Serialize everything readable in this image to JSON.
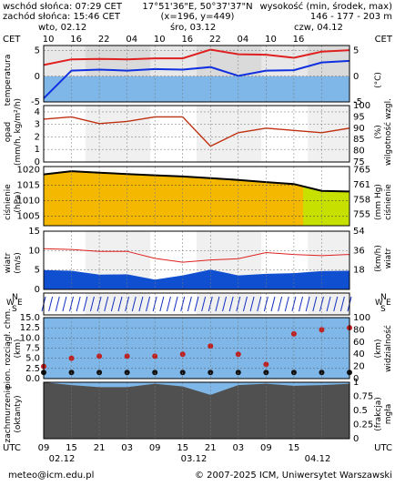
{
  "header": {
    "sunrise": "wschód słońca: 07:29 CET",
    "sunset": "zachód słońca: 15:46 CET",
    "coords": "17°51'36\"E, 50°37'37\"N",
    "grid": "(x=196, y=449)",
    "elevation_label": "wysokość (min, środek, max)",
    "elevation_values": "146 - 177 - 203 m"
  },
  "top_axis": {
    "tz_left": "CET",
    "tz_right": "CET",
    "days": [
      "wto, 02.12",
      "śro, 03.12",
      "czw, 04.12"
    ],
    "hours": [
      "10",
      "16",
      "22",
      "04",
      "10",
      "16",
      "22",
      "04",
      "10",
      "16"
    ]
  },
  "bottom_axis": {
    "tz_left": "UTC",
    "tz_right": "UTC",
    "hours": [
      "09",
      "15",
      "21",
      "03",
      "09",
      "15",
      "21",
      "03",
      "09",
      "15"
    ],
    "dates": [
      "02.12",
      "03.12",
      "04.12"
    ]
  },
  "labels": {
    "temperature_l": "temperatura",
    "temperature_r": "(°C)",
    "precip_l1": "opad",
    "precip_l2": "(mm/h, kg/m²/h)",
    "humidity_r1": "(%)",
    "humidity_r2": "wilgotność wzgl.",
    "pressure_l1": "ciśnienie",
    "pressure_l2": "(hPa)",
    "pressure_r1": "(mm Hg)",
    "pressure_r2": "ciśnienie",
    "wind_l": "wiatr",
    "wind_l2": "(m/s)",
    "wind_r1": "(km/h)",
    "wind_r2": "wiatr",
    "dir_n": "N",
    "dir_s": "S",
    "dir_w": "W",
    "dir_e": "E",
    "cloud_l1": "pion. rozciągł. chm.",
    "cloud_l2": "(km)",
    "visibility_r1": "(km)",
    "visibility_r2": "widzialność",
    "cover_l1": "zachmurzenie",
    "cover_l2": "(oktanty)",
    "fog_r1": "(frakcja)",
    "fog_r2": "mgła"
  },
  "footer": {
    "email": "meteo@icm.edu.pl",
    "copyright": "© 2007-2025 ICM, Uniwersytet Warszawski"
  },
  "colors": {
    "temp_line": "#e02020",
    "dew_line": "#1030e0",
    "humidity_line": "#c03010",
    "pressure_line": "#000000",
    "wind_fill": "#1050d0",
    "gust_line": "#e02020",
    "visibility_dots": "#c02020",
    "sky_blue": "#7fb8e8"
  },
  "chart_data": [
    {
      "type": "line",
      "title": "temperatura",
      "ylabel": "°C",
      "ylim": [
        -5,
        6
      ],
      "yticks": [
        -5,
        0,
        5
      ],
      "x": [
        0,
        6,
        12,
        18,
        24,
        30,
        36,
        42,
        48,
        54,
        60,
        66
      ],
      "series": [
        {
          "values": [
            2.2,
            3.3,
            3.4,
            3.3,
            3.5,
            3.5,
            5.2,
            4.3,
            4.2,
            3.6,
            4.8,
            5.1
          ]
        },
        {
          "values": [
            -4.3,
            1.1,
            1.3,
            1.1,
            1.4,
            1.3,
            1.8,
            0.1,
            1.1,
            1.2,
            2.7,
            3.0
          ]
        }
      ]
    },
    {
      "type": "line",
      "title": "wilgotność wzgl.",
      "ylabel": "%",
      "ylim": [
        75,
        100
      ],
      "yticks": [
        75,
        80,
        85,
        90,
        95,
        100
      ],
      "x": [
        0,
        6,
        12,
        18,
        24,
        30,
        36,
        42,
        48,
        54,
        60,
        66
      ],
      "series": [
        {
          "values": [
            94,
            95,
            92,
            93,
            95,
            95,
            82,
            88,
            90,
            89,
            88,
            90
          ]
        }
      ]
    },
    {
      "type": "line",
      "title": "ciśnienie",
      "ylabel": "hPa",
      "ylim": [
        1002,
        1021
      ],
      "yticks": [
        1005,
        1010,
        1015,
        1020
      ],
      "x": [
        0,
        6,
        12,
        18,
        24,
        30,
        36,
        42,
        48,
        54,
        60,
        66
      ],
      "series": [
        {
          "values": [
            1018.5,
            1019.5,
            1019.0,
            1018.6,
            1018.2,
            1017.8,
            1017.3,
            1016.7,
            1016.0,
            1015.4,
            1013.2,
            1013.0
          ]
        }
      ]
    },
    {
      "type": "area",
      "title": "wiatr",
      "ylabel": "m/s",
      "ylim": [
        0,
        15
      ],
      "yticks": [
        0,
        5,
        10,
        15
      ],
      "x": [
        0,
        6,
        12,
        18,
        24,
        30,
        36,
        42,
        48,
        54,
        60,
        66
      ],
      "series": [
        {
          "values": [
            5.0,
            4.8,
            3.8,
            3.9,
            2.5,
            3.6,
            5.1,
            3.6,
            4.0,
            4.2,
            4.7,
            4.8
          ]
        },
        {
          "values": [
            10.5,
            10.3,
            9.8,
            9.8,
            8.0,
            7.0,
            7.6,
            7.9,
            9.5,
            9.0,
            8.7,
            9.0
          ]
        }
      ]
    },
    {
      "type": "scatter",
      "title": "widzialność",
      "ylabel": "km",
      "ylim": [
        0,
        15
      ],
      "yticks": [
        0.0,
        2.5,
        5.0,
        7.5,
        10.0,
        12.5,
        15.0
      ],
      "x": [
        0,
        6,
        12,
        18,
        24,
        30,
        36,
        42,
        48,
        54,
        60,
        66
      ],
      "series": [
        {
          "values": [
            3.0,
            5.0,
            5.5,
            5.5,
            5.5,
            6.0,
            8.0,
            6.0,
            3.5,
            11.0,
            12.0,
            12.5
          ]
        }
      ]
    },
    {
      "type": "area",
      "title": "zachmurzenie",
      "ylabel": "oktanty",
      "ylim": [
        0,
        8
      ],
      "x": [
        0,
        6,
        12,
        18,
        24,
        30,
        36,
        42,
        48,
        54,
        60,
        66
      ],
      "series": [
        {
          "values": [
            8,
            7.6,
            7.3,
            7.3,
            7.8,
            7.4,
            6.2,
            7.6,
            7.8,
            7.5,
            7.6,
            7.8
          ]
        }
      ]
    }
  ]
}
